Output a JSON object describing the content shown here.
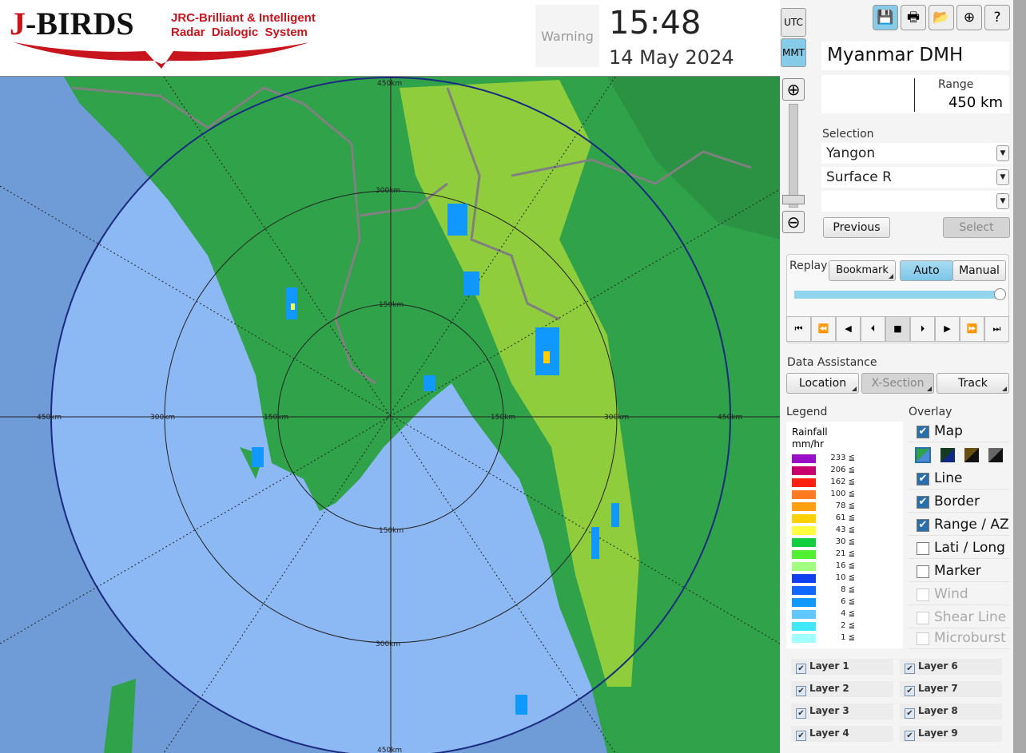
{
  "header": {
    "logo_main": "J-BIRDS",
    "logo_sub": "JRC-Brilliant & Intelligent\nRadar  Dialogic  System",
    "warning": "Warning",
    "time": "15:48",
    "date": "14 May 2024",
    "tz_utc": "UTC",
    "tz_mmt": "MMT"
  },
  "toolbar": [
    {
      "icon": "save-icon",
      "glyph": "💾"
    },
    {
      "icon": "print-icon",
      "glyph": "🖶"
    },
    {
      "icon": "open-folder-icon",
      "glyph": "📂"
    },
    {
      "icon": "add-window-icon",
      "glyph": "⊕"
    },
    {
      "icon": "help-icon",
      "glyph": "?"
    }
  ],
  "station": "Myanmar DMH",
  "range": {
    "label": "Range",
    "value": "450 km"
  },
  "selection": {
    "label": "Selection",
    "site": "Yangon",
    "product": "Surface R",
    "third": "",
    "previous": "Previous",
    "select": "Select"
  },
  "replay": {
    "label": "Replay",
    "bookmark": "Bookmark",
    "auto": "Auto",
    "manual": "Manual",
    "position": 1.0,
    "buttons": [
      "⏮",
      "⏪",
      "◀",
      "⏴",
      "■",
      "⏵",
      "▶",
      "⏩",
      "⏭"
    ]
  },
  "data_assistance": {
    "label": "Data Assistance",
    "location": "Location",
    "xsection": "X-Section",
    "track": "Track"
  },
  "legend": {
    "label": "Legend",
    "title": "Rainfall",
    "unit": "mm/hr",
    "items": [
      {
        "v": "233 ≦",
        "c": "#9a0ec8"
      },
      {
        "v": "206 ≦",
        "c": "#c8006e"
      },
      {
        "v": "162 ≦",
        "c": "#ff2010"
      },
      {
        "v": "100 ≦",
        "c": "#ff7a20"
      },
      {
        "v": "78 ≦",
        "c": "#ffa010"
      },
      {
        "v": "61 ≦",
        "c": "#ffd000"
      },
      {
        "v": "43 ≦",
        "c": "#ffff40"
      },
      {
        "v": "30 ≦",
        "c": "#10d040"
      },
      {
        "v": "21 ≦",
        "c": "#50f030"
      },
      {
        "v": "16 ≦",
        "c": "#a0ff80"
      },
      {
        "v": "10 ≦",
        "c": "#1040f0"
      },
      {
        "v": "8 ≦",
        "c": "#1068ff"
      },
      {
        "v": "6 ≦",
        "c": "#1098ff"
      },
      {
        "v": "4 ≦",
        "c": "#60c8ff"
      },
      {
        "v": "2 ≦",
        "c": "#40e8ff"
      },
      {
        "v": "1 ≦",
        "c": "#a0ffff"
      }
    ]
  },
  "overlay": {
    "label": "Overlay",
    "items": [
      {
        "label": "Map",
        "checked": true,
        "enabled": true
      },
      {
        "label": "Line",
        "checked": true,
        "enabled": true
      },
      {
        "label": "Border",
        "checked": true,
        "enabled": true
      },
      {
        "label": "Range / AZ",
        "checked": true,
        "enabled": true
      },
      {
        "label": "Lati / Long",
        "checked": false,
        "enabled": true
      },
      {
        "label": "Marker",
        "checked": false,
        "enabled": true
      },
      {
        "label": "Wind",
        "checked": false,
        "enabled": false
      },
      {
        "label": "Shear Line",
        "checked": false,
        "enabled": false
      },
      {
        "label": "Microburst",
        "checked": false,
        "enabled": false
      }
    ]
  },
  "layers": [
    "Layer 1",
    "Layer 2",
    "Layer 3",
    "Layer 4",
    "Layer 6",
    "Layer 7",
    "Layer 8",
    "Layer 9"
  ],
  "map": {
    "ring_labels": [
      "150km",
      "300km",
      "450km"
    ],
    "colors": {
      "outside": "#6f9bd6",
      "sea": "#8cb8f4",
      "land": "#2fa24a",
      "highland": "#a8d838"
    }
  }
}
